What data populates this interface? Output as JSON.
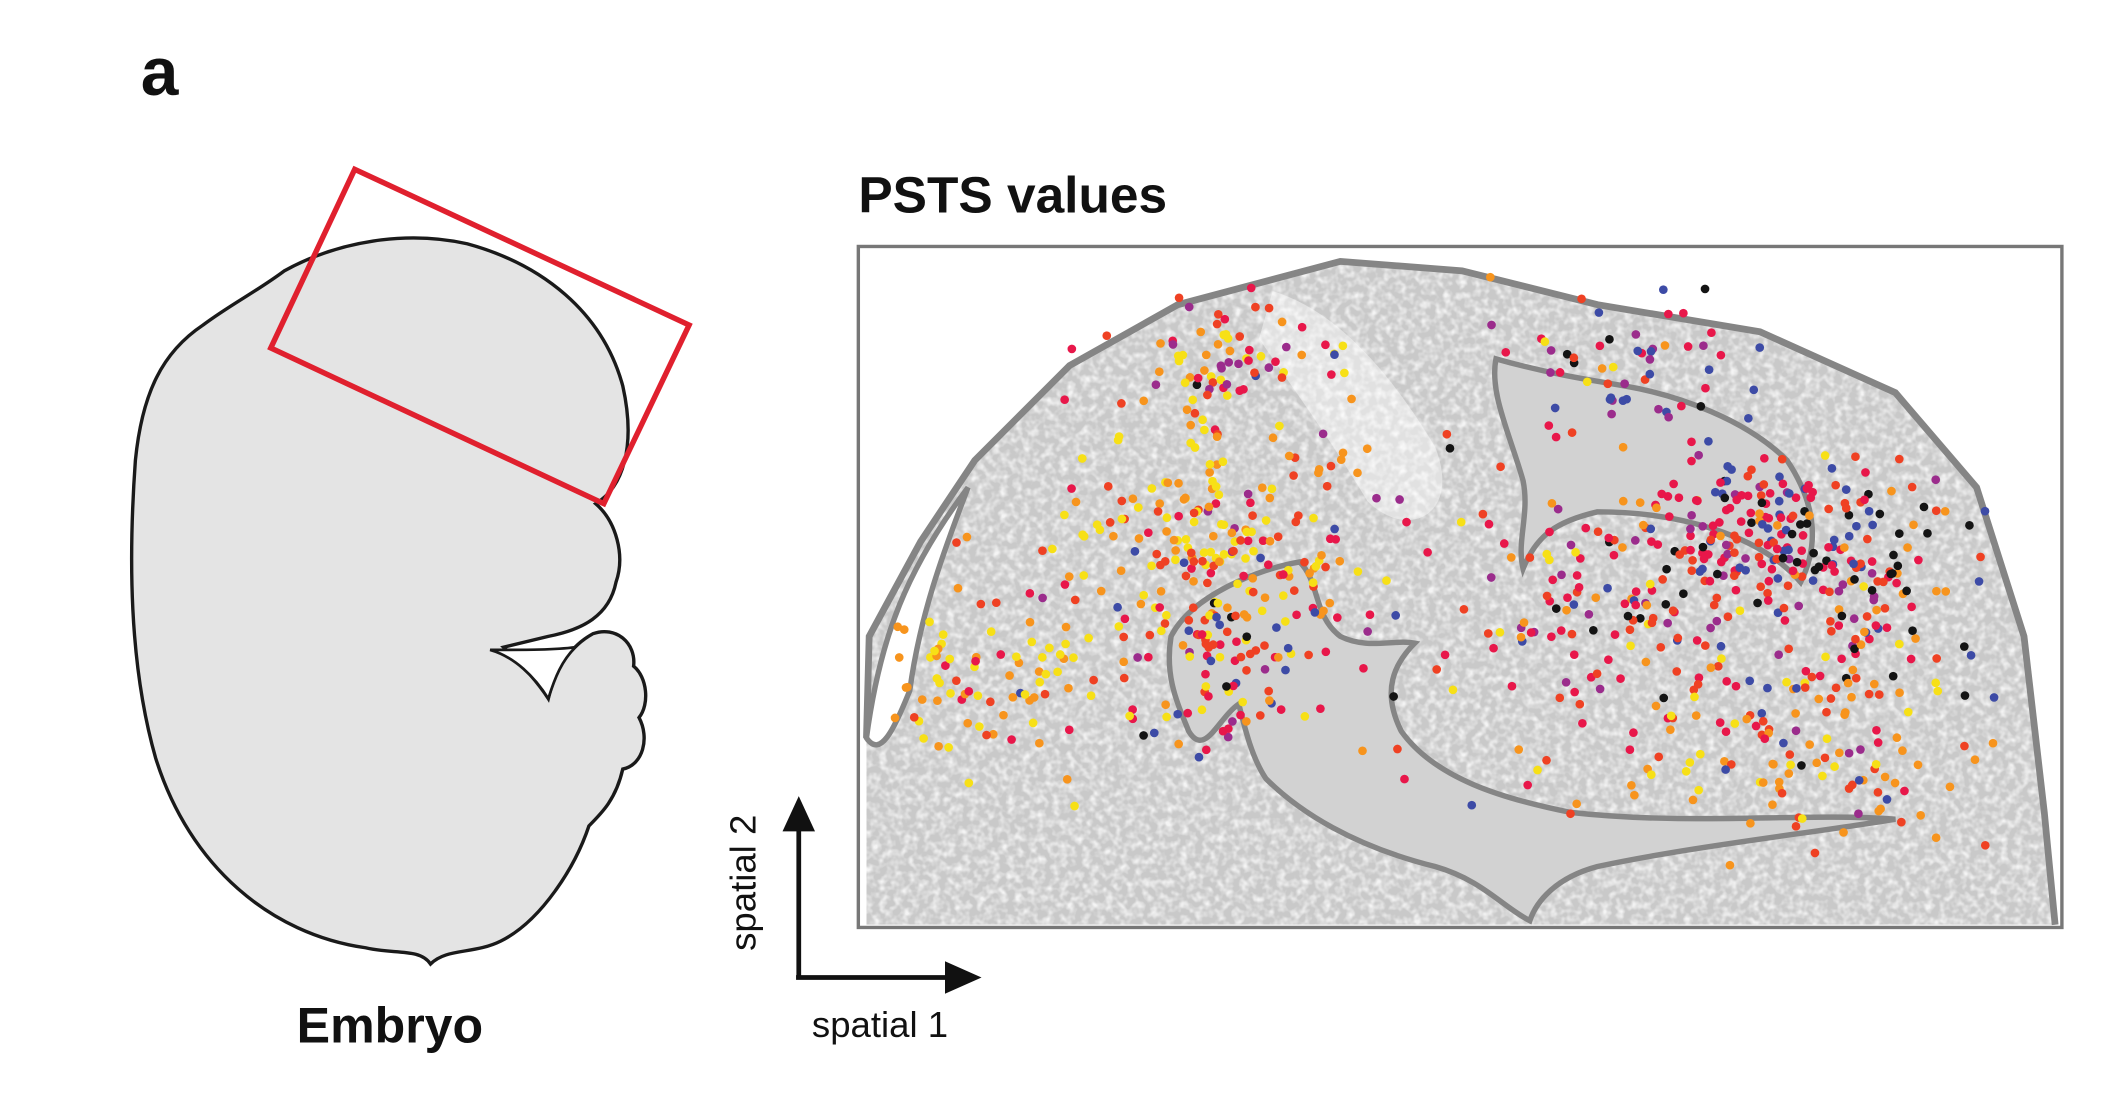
{
  "panel_label": "a",
  "embryo": {
    "label": "Embryo",
    "highlight_color": "#e0202e"
  },
  "plot": {
    "title": "PSTS values",
    "axis_x_label": "spatial 1",
    "axis_y_label": "spatial 2"
  },
  "chart_data": {
    "type": "scatter",
    "title": "PSTS values",
    "xlabel": "spatial 1",
    "ylabel": "spatial 2",
    "color_scale": [
      "#f7e016",
      "#f7941d",
      "#ef4123",
      "#e8174a",
      "#9b2c8c",
      "#3d4ba6",
      "#141414"
    ]
  }
}
